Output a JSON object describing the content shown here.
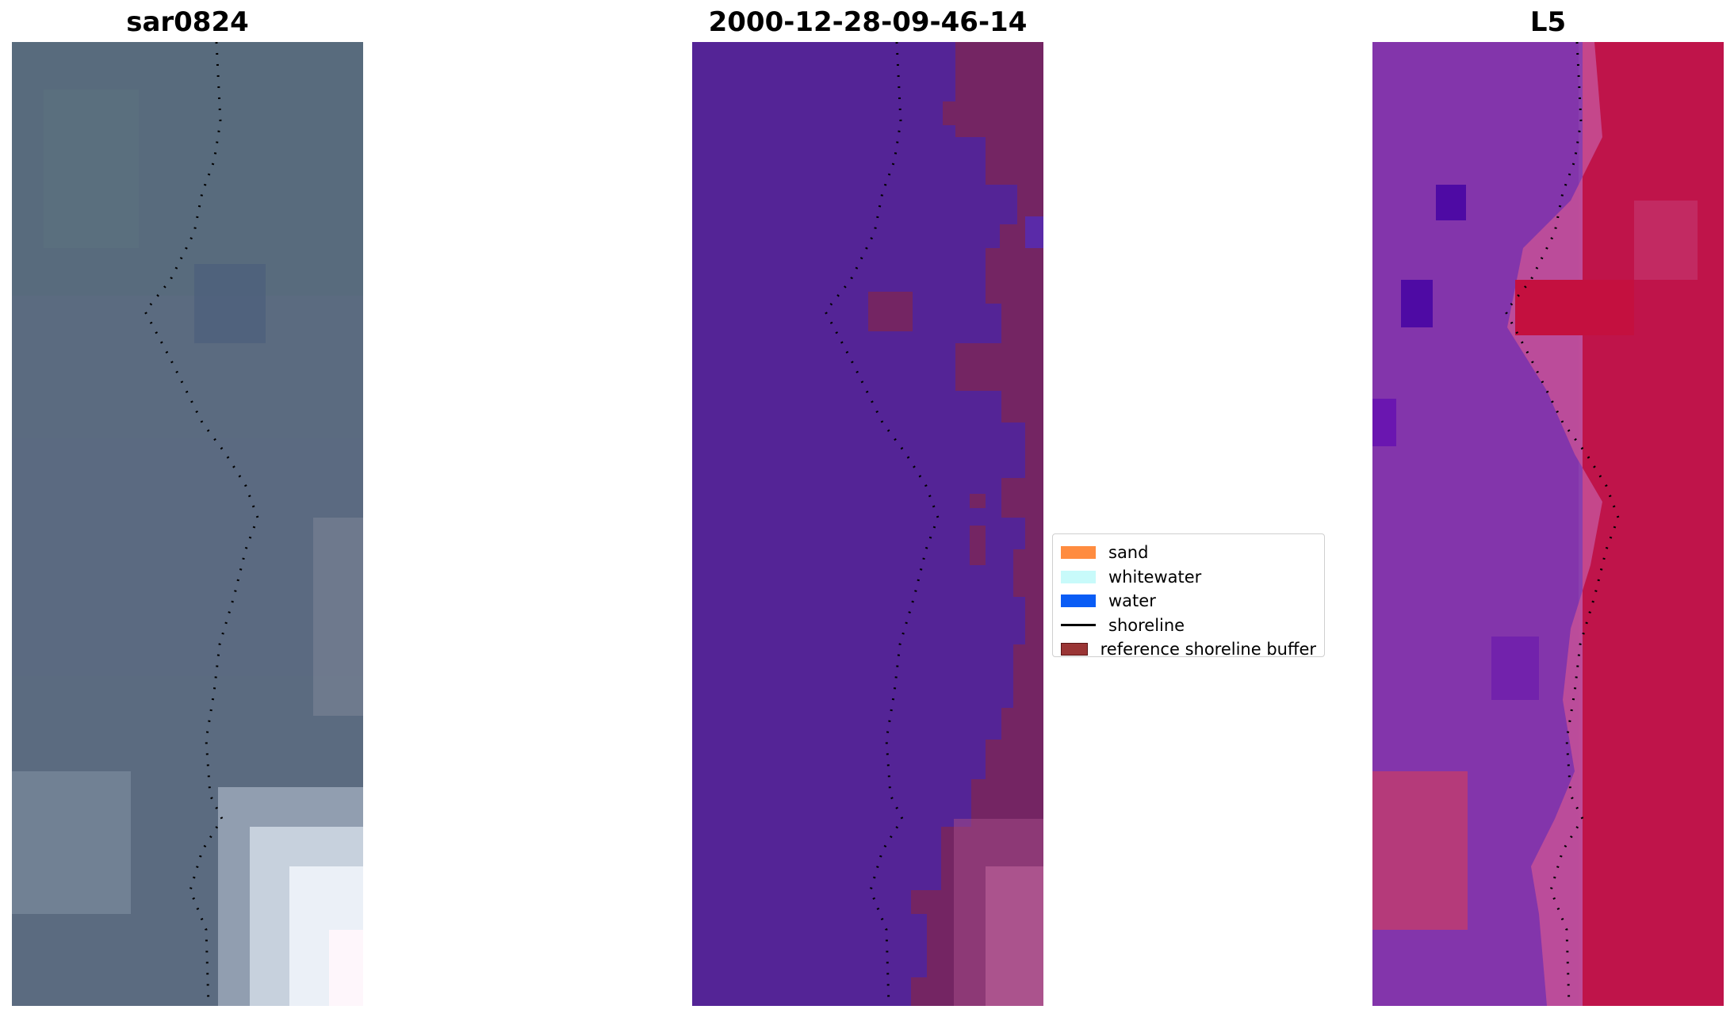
{
  "titles": {
    "left": "sar0824",
    "center": "2000-12-28-09-46-14",
    "right": "L5"
  },
  "legend": [
    {
      "label": "sand",
      "kind": "patch",
      "color": "#ff8c40"
    },
    {
      "label": "whitewater",
      "kind": "patch",
      "color": "#c8fafa"
    },
    {
      "label": "water",
      "kind": "patch",
      "color": "#0a5cf5"
    },
    {
      "label": "shoreline",
      "kind": "line",
      "color": "#000000"
    },
    {
      "label": "reference shoreline buffer",
      "kind": "patch",
      "color": "#9a3535"
    }
  ],
  "colors": {
    "sar_base": "#5a6a80",
    "classified_background": "#542496",
    "buffer_overlay": "#722460",
    "ndwi_land": "#c4103f",
    "ndwi_water": "#8a3fae",
    "shoreline": "#000000"
  }
}
